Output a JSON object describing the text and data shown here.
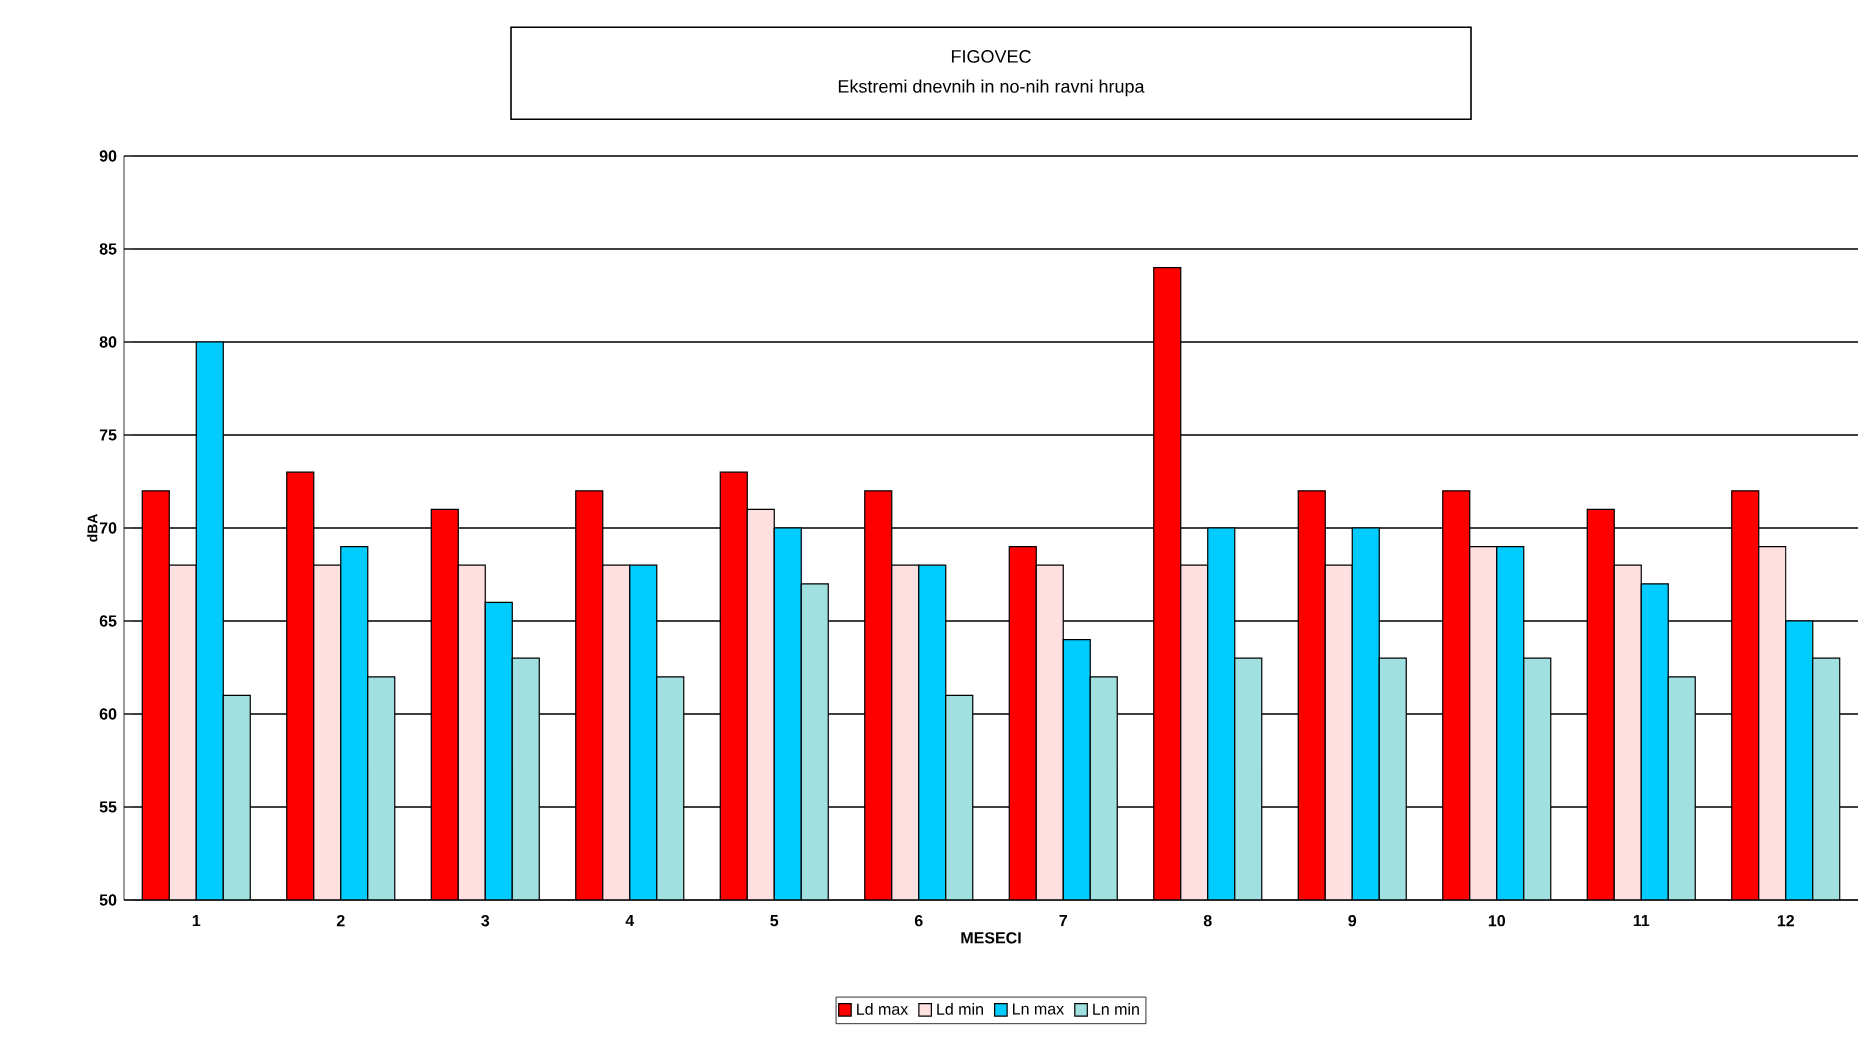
{
  "chart_data": {
    "type": "bar",
    "title": "FIGOVEC",
    "subtitle": "Ekstremi dnevnih in no-nih ravni hrupa",
    "xlabel": "MESECI",
    "ylabel": "dBA",
    "categories": [
      "1",
      "2",
      "3",
      "4",
      "5",
      "6",
      "7",
      "8",
      "9",
      "10",
      "11",
      "12"
    ],
    "series": [
      {
        "name": "Ld max",
        "color": "#ff0000",
        "values": [
          72,
          73,
          71,
          72,
          73,
          72,
          69,
          84,
          72,
          72,
          71,
          72
        ]
      },
      {
        "name": "Ld min",
        "color": "#ffe0e0",
        "values": [
          68,
          68,
          68,
          68,
          71,
          68,
          68,
          68,
          68,
          69,
          68,
          69
        ]
      },
      {
        "name": "Ln max",
        "color": "#00ccff",
        "values": [
          80,
          69,
          66,
          68,
          70,
          68,
          64,
          70,
          70,
          69,
          67,
          65
        ]
      },
      {
        "name": "Ln min",
        "color": "#a0e0e0",
        "values": [
          61,
          62,
          63,
          62,
          67,
          61,
          62,
          63,
          63,
          63,
          62,
          63
        ]
      }
    ],
    "ylim": [
      50,
      90
    ],
    "yticks": [
      50,
      55,
      60,
      65,
      70,
      75,
      80,
      85,
      90
    ],
    "grid": "y",
    "legend": "bottom"
  }
}
